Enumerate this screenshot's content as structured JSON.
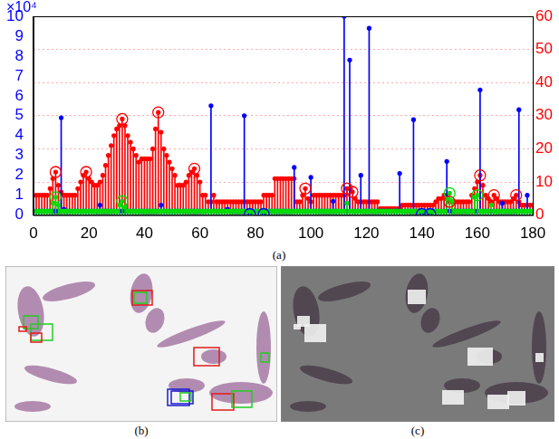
{
  "chart_data": {
    "type": "stem",
    "annotations": [
      "×10⁴"
    ],
    "xlim": [
      0,
      180
    ],
    "xticks": [
      0,
      20,
      40,
      60,
      80,
      100,
      120,
      140,
      160,
      180
    ],
    "ylim": [
      0,
      10
    ],
    "yticks": [
      0,
      1,
      2,
      3,
      4,
      5,
      6,
      7,
      8,
      9,
      10
    ],
    "y2lim": [
      0,
      60
    ],
    "y2ticks": [
      0,
      10,
      20,
      30,
      40,
      50,
      60
    ],
    "grid": true,
    "x": [
      1,
      2,
      3,
      4,
      5,
      6,
      7,
      8,
      9,
      10,
      11,
      12,
      13,
      14,
      15,
      16,
      17,
      18,
      19,
      20,
      21,
      22,
      23,
      24,
      25,
      26,
      27,
      28,
      29,
      30,
      31,
      32,
      33,
      34,
      35,
      36,
      37,
      38,
      39,
      40,
      41,
      42,
      43,
      44,
      45,
      46,
      47,
      48,
      49,
      50,
      51,
      52,
      53,
      54,
      55,
      56,
      57,
      58,
      59,
      60,
      61,
      62,
      63,
      64,
      65,
      66,
      67,
      68,
      69,
      70,
      71,
      72,
      73,
      74,
      75,
      76,
      77,
      78,
      79,
      80,
      81,
      82,
      83,
      84,
      85,
      86,
      87,
      88,
      89,
      90,
      91,
      92,
      93,
      94,
      95,
      96,
      97,
      98,
      99,
      100,
      101,
      102,
      103,
      104,
      105,
      106,
      107,
      108,
      109,
      110,
      111,
      112,
      113,
      114,
      115,
      116,
      117,
      118,
      119,
      120,
      121,
      122,
      123,
      124,
      125,
      126,
      127,
      128,
      129,
      130,
      131,
      132,
      133,
      134,
      135,
      136,
      137,
      138,
      139,
      140,
      141,
      142,
      143,
      144,
      145,
      146,
      147,
      148,
      149,
      150,
      151,
      152,
      153,
      154,
      155,
      156,
      157,
      158,
      159,
      160,
      161,
      162,
      163,
      164,
      165,
      166,
      167,
      168,
      169,
      170,
      171,
      172,
      173,
      174,
      175,
      176,
      177,
      178,
      179,
      180
    ],
    "series": [
      {
        "type": "stem",
        "color": "#ff0000",
        "axis": "y2",
        "marker": "dot",
        "values": [
          6,
          6,
          6,
          6,
          6,
          8,
          11,
          13,
          9,
          7,
          6,
          6,
          6,
          6,
          6,
          8,
          10,
          12,
          13,
          11,
          10,
          9,
          9,
          10,
          12,
          15,
          18,
          21,
          24,
          26,
          27,
          29,
          27,
          24,
          22,
          20,
          18,
          16,
          17,
          17,
          17,
          17,
          20,
          26,
          31,
          25,
          20,
          18,
          16,
          14,
          12,
          9,
          9,
          9,
          10,
          12,
          13,
          14,
          12,
          10,
          6,
          6,
          4,
          4,
          6,
          4,
          4,
          4,
          4,
          4,
          4,
          4,
          4,
          4,
          4,
          4,
          4,
          4,
          4,
          4,
          4,
          4,
          6,
          6,
          6,
          6,
          11,
          11,
          11,
          11,
          11,
          11,
          11,
          11,
          4,
          4,
          6,
          8,
          5,
          4,
          6,
          6,
          6,
          6,
          6,
          6,
          6,
          6,
          6,
          6,
          6,
          6,
          8,
          8,
          7,
          5,
          4,
          4,
          4,
          4,
          4,
          4,
          4,
          4,
          2,
          2,
          2,
          2,
          2,
          2,
          2,
          2,
          3,
          3,
          3,
          3,
          3,
          3,
          3,
          3,
          3,
          3,
          3,
          3,
          4,
          5,
          5,
          6,
          6,
          4,
          4,
          4,
          4,
          4,
          4,
          4,
          4,
          6,
          8,
          10,
          12,
          9,
          6,
          5,
          4,
          6,
          5,
          4,
          4,
          4,
          4,
          4,
          5,
          6,
          4,
          3,
          3,
          3,
          3,
          3
        ]
      },
      {
        "type": "stem",
        "color": "#0000ff",
        "marker": "dot",
        "values": [
          0.2,
          0.2,
          0.2,
          0.2,
          0.2,
          0.2,
          0.2,
          0.2,
          0.2,
          4.9,
          0.3,
          0.2,
          0.2,
          0.2,
          0.2,
          0.2,
          0.2,
          0.2,
          0.2,
          0.2,
          0.2,
          0.2,
          0.2,
          0.5,
          0.2,
          0.2,
          0.2,
          0.2,
          0.2,
          0.2,
          0.2,
          0.2,
          0.2,
          0.2,
          0.2,
          0.2,
          0.2,
          0.2,
          0.2,
          0.2,
          0.2,
          0.2,
          0.2,
          0.2,
          0.2,
          0.5,
          0.2,
          0.2,
          0.2,
          0.2,
          0.2,
          0.2,
          0.2,
          0.2,
          0.2,
          0.2,
          0.2,
          0.2,
          0.2,
          0.2,
          0.2,
          0.2,
          0.2,
          5.5,
          0.2,
          0.2,
          0.2,
          0.2,
          0.2,
          0.3,
          0.2,
          0.2,
          0.2,
          0.2,
          0.2,
          5.0,
          0.2,
          0.05,
          0.2,
          0.2,
          0.2,
          0.2,
          0.05,
          0.2,
          0.2,
          0.2,
          0.2,
          0.2,
          0.2,
          0.2,
          0.2,
          0.2,
          0.2,
          2.4,
          0.2,
          0.2,
          0.2,
          0.2,
          0.2,
          1.9,
          0.2,
          0.2,
          0.2,
          0.2,
          0.2,
          0.2,
          0.2,
          0.7,
          0.2,
          0.2,
          0.2,
          10,
          0.2,
          7.8,
          0.2,
          0.2,
          0.2,
          2.0,
          0.2,
          0.2,
          9.4,
          0.2,
          0.2,
          0.2,
          0.2,
          0.2,
          0.2,
          0.2,
          0.2,
          0.2,
          0.2,
          2.1,
          0.2,
          0.2,
          0.2,
          0.2,
          4.8,
          0.2,
          0.2,
          0.05,
          0.2,
          0.2,
          0.05,
          0.2,
          0.2,
          0.2,
          0.2,
          0.2,
          2.7,
          0.2,
          0.2,
          0.2,
          0.2,
          0.2,
          0.2,
          0.2,
          0.2,
          0.2,
          0.2,
          0.2,
          6.3,
          0.2,
          0.2,
          0.2,
          0.2,
          0.2,
          0.2,
          0.2,
          0.6,
          0.2,
          0.2,
          0.2,
          0.2,
          0.2,
          5.3,
          0.2,
          0.2,
          1.0,
          0.2,
          0.2
        ]
      },
      {
        "type": "stem",
        "color": "#00dd00",
        "marker": "dot",
        "values": [
          0.2,
          0.2,
          0.2,
          0.2,
          0.2,
          0.2,
          0.6,
          0.9,
          0.5,
          0.2,
          0.2,
          0.2,
          0.2,
          0.2,
          0.2,
          0.2,
          0.2,
          0.2,
          0.2,
          0.2,
          0.2,
          0.2,
          0.2,
          0.2,
          0.2,
          0.2,
          0.2,
          0.2,
          0.2,
          0.2,
          0.5,
          0.7,
          0.4,
          0.2,
          0.2,
          0.2,
          0.2,
          0.2,
          0.2,
          0.2,
          0.2,
          0.2,
          0.2,
          0.2,
          0.2,
          0.2,
          0.2,
          0.2,
          0.2,
          0.2,
          0.2,
          0.2,
          0.2,
          0.2,
          0.2,
          0.2,
          0.2,
          0.2,
          0.2,
          0.2,
          0.2,
          0.2,
          0.2,
          0.2,
          0.2,
          0.2,
          0.2,
          0.2,
          0.2,
          0.2,
          0.2,
          0.2,
          0.2,
          0.2,
          0.2,
          0.2,
          0.2,
          0.2,
          0.2,
          0.2,
          0.2,
          0.2,
          0.2,
          0.2,
          0.2,
          0.2,
          0.2,
          0.2,
          0.2,
          0.2,
          0.2,
          0.2,
          0.2,
          0.2,
          0.2,
          0.2,
          0.2,
          0.2,
          0.2,
          0.2,
          0.2,
          0.2,
          0.2,
          0.2,
          0.2,
          0.2,
          0.2,
          0.2,
          0.2,
          0.2,
          0.2,
          0.2,
          0.6,
          0.2,
          0.2,
          0.2,
          0.2,
          0.2,
          0.2,
          0.2,
          0.2,
          0.2,
          0.2,
          0.2,
          0.2,
          0.2,
          0.2,
          0.2,
          0.2,
          0.2,
          0.2,
          0.2,
          0.2,
          0.2,
          0.2,
          0.2,
          0.2,
          0.2,
          0.2,
          0.2,
          0.2,
          0.2,
          0.2,
          0.2,
          0.2,
          0.2,
          0.2,
          0.2,
          0.8,
          1.1,
          0.7,
          0.2,
          0.2,
          0.2,
          0.2,
          0.2,
          0.2,
          0.2,
          0.9,
          1.0,
          0.2,
          0.2,
          0.2,
          0.2,
          0.5,
          0.2,
          0.2,
          0.2,
          0.2,
          0.2,
          0.2,
          0.2,
          0.2,
          0.2,
          0.2,
          0.2,
          0.2,
          0.2,
          0.2,
          0.2
        ]
      },
      {
        "type": "scatter",
        "color": "#ff0000",
        "axis": "y2",
        "marker": "ring",
        "x": [
          8,
          19,
          32,
          45,
          58,
          98,
          113,
          115,
          150,
          161,
          166,
          174
        ],
        "values": [
          13,
          13,
          29,
          31,
          14,
          8,
          8,
          7,
          4,
          12,
          6,
          6
        ]
      },
      {
        "type": "scatter",
        "color": "#0000ff",
        "marker": "ring",
        "x": [
          78,
          83,
          140,
          143
        ],
        "values": [
          0.05,
          0.05,
          0.05,
          0.05
        ]
      },
      {
        "type": "scatter",
        "color": "#00dd00",
        "marker": "ring",
        "x": [
          8,
          32,
          150,
          160
        ],
        "values": [
          0.9,
          0.7,
          1.1,
          1.0
        ]
      }
    ]
  },
  "captions": [
    "(a)",
    "(b)",
    "(c)"
  ]
}
